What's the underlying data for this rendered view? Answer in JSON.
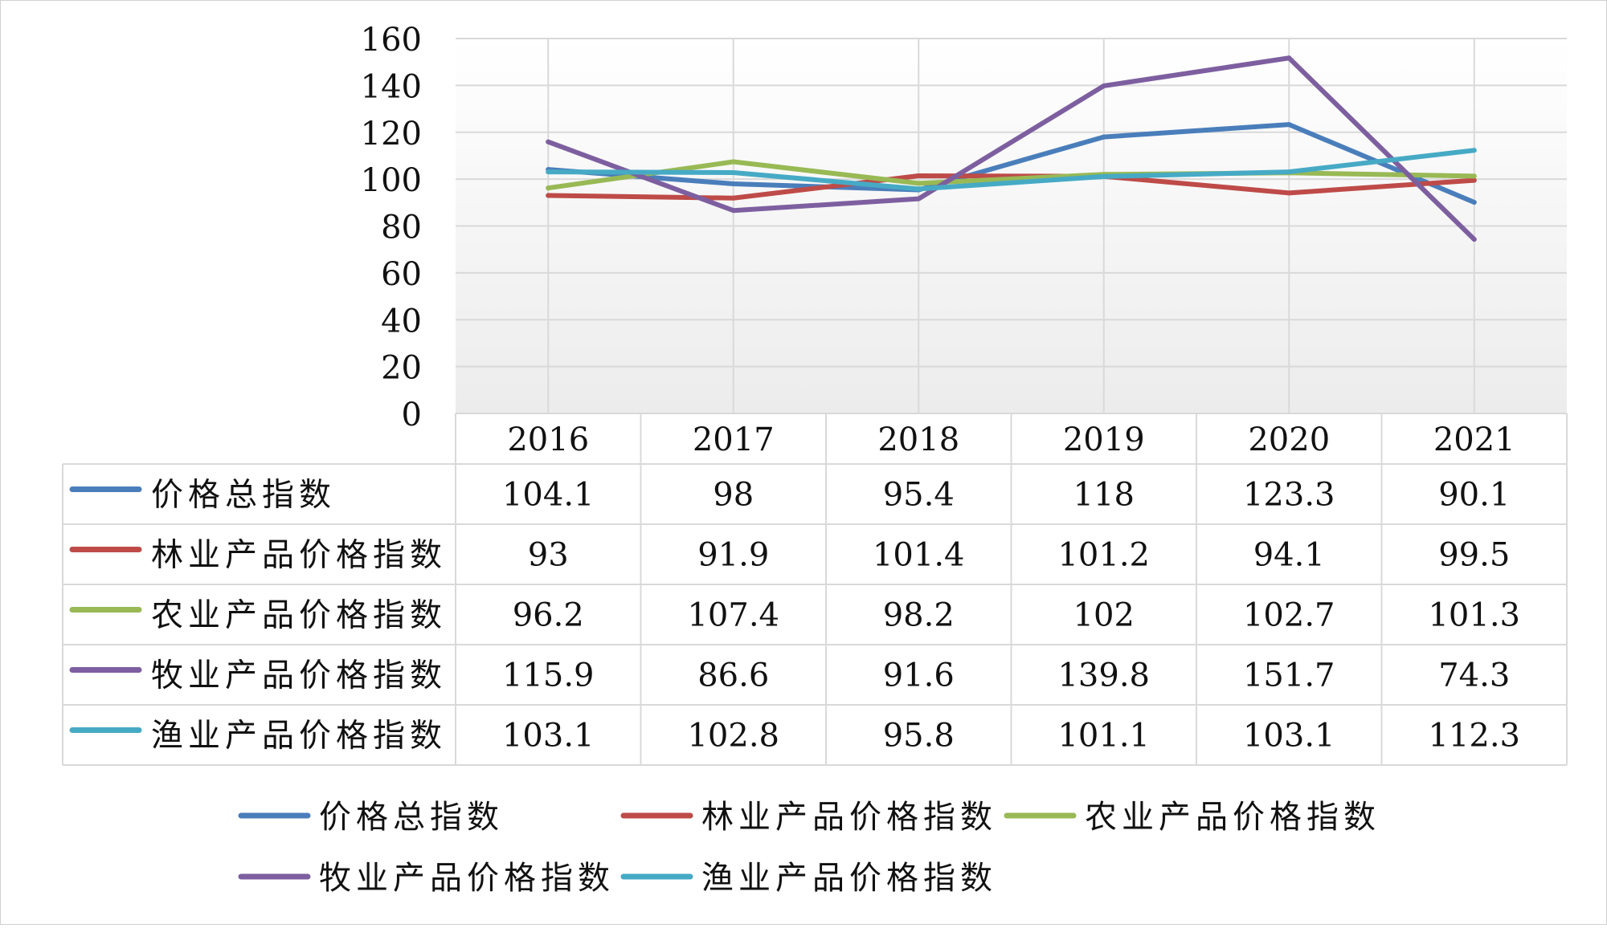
{
  "chart_data": {
    "type": "line",
    "title": "",
    "xlabel": "",
    "ylabel": "",
    "categories": [
      "2016",
      "2017",
      "2018",
      "2019",
      "2020",
      "2021"
    ],
    "ylim": [
      0,
      160
    ],
    "yticks": [
      0,
      20,
      40,
      60,
      80,
      100,
      120,
      140,
      160
    ],
    "grid": true,
    "legend_position": "bottom",
    "data_table": true,
    "series": [
      {
        "name": "价格总指数",
        "color": "#4A7EBB",
        "values": [
          104.1,
          98,
          95.4,
          118,
          123.3,
          90.1
        ]
      },
      {
        "name": "林业产品价格指数",
        "color": "#BE4B48",
        "values": [
          93,
          91.9,
          101.4,
          101.2,
          94.1,
          99.5
        ]
      },
      {
        "name": "农业产品价格指数",
        "color": "#98B954",
        "values": [
          96.2,
          107.4,
          98.2,
          102,
          102.7,
          101.3
        ]
      },
      {
        "name": "牧业产品价格指数",
        "color": "#7D5FA0",
        "values": [
          115.9,
          86.6,
          91.6,
          139.8,
          151.7,
          74.3
        ]
      },
      {
        "name": "渔业产品价格指数",
        "color": "#46AAC5",
        "values": [
          103.1,
          102.8,
          95.8,
          101.1,
          103.1,
          112.3
        ]
      }
    ]
  }
}
